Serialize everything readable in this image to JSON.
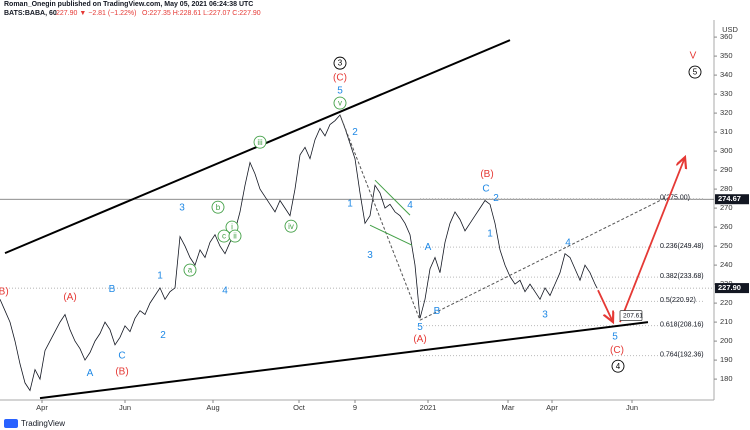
{
  "header": {
    "author_line": "Roman_Onegin published on TradingView.com, May 05, 2021 06:24:38 UTC",
    "symbol": "BATS:BABA, 60",
    "quote": "227.90 ▼ −2.81 (−1.22%)",
    "ohlc": "O:227.35 H:228.61 L:227.07 C:227.90"
  },
  "footer": {
    "brand": "TradingView"
  },
  "chart_data": {
    "type": "line",
    "currency": "USD",
    "color": "#131722",
    "x": [
      0,
      5,
      10,
      15,
      20,
      25,
      30,
      35,
      40,
      45,
      50,
      55,
      60,
      65,
      70,
      75,
      80,
      85,
      90,
      95,
      100,
      105,
      110,
      115,
      120,
      125,
      130,
      135,
      140,
      145,
      150,
      155,
      160,
      165,
      170,
      175,
      180,
      185,
      190,
      195,
      200,
      205,
      210,
      215,
      220,
      225,
      230,
      235,
      240,
      245,
      250,
      255,
      260,
      265,
      270,
      275,
      280,
      285,
      290,
      295,
      300,
      305,
      310,
      315,
      320,
      325,
      330,
      335,
      340,
      345,
      350,
      355,
      360,
      365,
      370,
      375,
      380,
      385,
      390,
      395,
      400,
      405,
      410,
      415,
      420,
      425,
      430,
      435,
      440,
      445,
      450,
      455,
      460,
      465,
      470,
      475,
      480,
      485,
      490,
      495,
      500,
      505,
      510,
      515,
      520,
      525,
      530,
      535,
      540,
      545,
      550,
      555,
      560,
      565,
      570,
      575,
      580,
      585,
      590,
      595,
      597
    ],
    "values": [
      222,
      216,
      210,
      200,
      188,
      178,
      174,
      185,
      180,
      195,
      200,
      205,
      210,
      214,
      206,
      200,
      196,
      190,
      194,
      200,
      204,
      210,
      206,
      198,
      202,
      208,
      205,
      212,
      216,
      214,
      220,
      224,
      228,
      222,
      226,
      228,
      255,
      250,
      244,
      240,
      248,
      244,
      252,
      256,
      250,
      246,
      252,
      258,
      268,
      282,
      294,
      288,
      280,
      276,
      272,
      268,
      274,
      270,
      266,
      280,
      298,
      302,
      296,
      306,
      312,
      308,
      314,
      316,
      319,
      312,
      304,
      296,
      278,
      262,
      266,
      282,
      278,
      270,
      272,
      268,
      266,
      262,
      256,
      240,
      212,
      222,
      238,
      244,
      236,
      252,
      262,
      268,
      264,
      258,
      262,
      266,
      270,
      274,
      272,
      262,
      248,
      240,
      234,
      230,
      232,
      226,
      230,
      226,
      222,
      228,
      224,
      230,
      236,
      246,
      244,
      238,
      232,
      240,
      236,
      230,
      227.9
    ],
    "xlim": [
      0,
      714
    ],
    "ylim": [
      169,
      369
    ],
    "yticks": [
      180,
      190,
      200,
      210,
      220,
      230,
      240,
      250,
      260,
      270,
      280,
      290,
      300,
      310,
      320,
      330,
      340,
      350,
      360
    ],
    "xticks": [
      {
        "value": 42,
        "label": "Apr"
      },
      {
        "value": 125,
        "label": "Jun"
      },
      {
        "value": 213,
        "label": "Aug"
      },
      {
        "value": 299,
        "label": "Oct"
      },
      {
        "value": 355,
        "label": "9"
      },
      {
        "value": 428,
        "label": "2021"
      },
      {
        "value": 508,
        "label": "Mar"
      },
      {
        "value": 552,
        "label": "Apr"
      },
      {
        "value": 632,
        "label": "Jun"
      }
    ],
    "price_labels": [
      {
        "value": 274.67,
        "label": "274.67"
      },
      {
        "value": 227.9,
        "label": "227.90"
      }
    ],
    "fib_levels": [
      {
        "value": 275,
        "label": "0(275.00)"
      },
      {
        "value": 249.48,
        "label": "0.236(249.48)"
      },
      {
        "value": 233.68,
        "label": "0.382(233.68)"
      },
      {
        "value": 220.92,
        "label": "0.5(220.92)"
      },
      {
        "value": 208.16,
        "label": "0.618(208.16)"
      },
      {
        "value": 192.36,
        "label": "0.764(192.36)"
      }
    ],
    "lines": [
      {
        "points": [
          [
            5,
            246.3
          ],
          [
            510,
            358.4
          ]
        ],
        "color": "#000000",
        "style": "solid"
      },
      {
        "points": [
          [
            40,
            170
          ],
          [
            648,
            210
          ]
        ],
        "color": "#000000",
        "style": "solid"
      },
      {
        "points": [
          [
            340,
            319
          ],
          [
            420,
            211
          ]
        ],
        "color": "#555555",
        "style": "dashed"
      },
      {
        "points": [
          [
            420,
            211
          ],
          [
            665,
            275.3
          ]
        ],
        "color": "#555555",
        "style": "dashed"
      },
      {
        "points": [
          [
            375,
            284.7
          ],
          [
            410,
            266.3
          ]
        ],
        "color": "#43a047",
        "style": "solid"
      },
      {
        "points": [
          [
            370,
            261
          ],
          [
            412,
            250.5
          ]
        ],
        "color": "#43a047",
        "style": "solid"
      }
    ],
    "arrows": [
      {
        "points": [
          [
            598,
            226.8
          ],
          [
            613,
            210
          ]
        ],
        "color": "#e53935"
      },
      {
        "points": [
          [
            620,
            210
          ],
          [
            685,
            296.8
          ]
        ],
        "color": "#e53935"
      }
    ],
    "callout": {
      "value": 207.61,
      "label": "207.61",
      "x": 620
    },
    "annotations": [
      {
        "text": "3",
        "x": 340,
        "y": 346.3,
        "color": "#000000",
        "circled": true
      },
      {
        "text": "(C)",
        "x": 340,
        "y": 338.9,
        "color": "#e53935"
      },
      {
        "text": "5",
        "x": 340,
        "y": 332.1,
        "color": "#1e88e5"
      },
      {
        "text": "v",
        "x": 340,
        "y": 325.3,
        "color": "#43a047",
        "circled": true
      },
      {
        "text": "2",
        "x": 355,
        "y": 310,
        "color": "#1e88e5"
      },
      {
        "text": "iii",
        "x": 260,
        "y": 304.7,
        "color": "#43a047",
        "circled": true
      },
      {
        "text": "3",
        "x": 182,
        "y": 270.5,
        "color": "#1e88e5"
      },
      {
        "text": "b",
        "x": 218,
        "y": 270.5,
        "color": "#43a047",
        "circled": true
      },
      {
        "text": "i",
        "x": 232,
        "y": 260,
        "color": "#43a047",
        "circled": true
      },
      {
        "text": "c",
        "x": 224,
        "y": 255.3,
        "color": "#43a047",
        "circled": true
      },
      {
        "text": "ii",
        "x": 235,
        "y": 255.3,
        "color": "#43a047",
        "circled": true
      },
      {
        "text": "a",
        "x": 190,
        "y": 237.4,
        "color": "#43a047",
        "circled": true
      },
      {
        "text": "iv",
        "x": 291,
        "y": 260.5,
        "color": "#43a047",
        "circled": true
      },
      {
        "text": "1",
        "x": 160,
        "y": 234.7,
        "color": "#1e88e5"
      },
      {
        "text": "4",
        "x": 225,
        "y": 226.8,
        "color": "#1e88e5"
      },
      {
        "text": "B",
        "x": 112,
        "y": 227.4,
        "color": "#1e88e5"
      },
      {
        "text": "(A)",
        "x": 70,
        "y": 223.2,
        "color": "#e53935"
      },
      {
        "text": "(B)",
        "x": 2,
        "y": 226.3,
        "color": "#e53935"
      },
      {
        "text": "2",
        "x": 163,
        "y": 203.2,
        "color": "#1e88e5"
      },
      {
        "text": "C",
        "x": 122,
        "y": 192.6,
        "color": "#1e88e5"
      },
      {
        "text": "(B)",
        "x": 122,
        "y": 184.2,
        "color": "#e53935"
      },
      {
        "text": "A",
        "x": 90,
        "y": 183.2,
        "color": "#1e88e5"
      },
      {
        "text": "1",
        "x": 350,
        "y": 272.6,
        "color": "#1e88e5"
      },
      {
        "text": "3",
        "x": 370,
        "y": 245.3,
        "color": "#1e88e5"
      },
      {
        "text": "4",
        "x": 410,
        "y": 271.6,
        "color": "#1e88e5"
      },
      {
        "text": "A",
        "x": 428,
        "y": 249.5,
        "color": "#1e88e5"
      },
      {
        "text": "B",
        "x": 437,
        "y": 215.8,
        "color": "#1e88e5"
      },
      {
        "text": "5",
        "x": 420,
        "y": 207.4,
        "color": "#1e88e5"
      },
      {
        "text": "(A)",
        "x": 420,
        "y": 201.1,
        "color": "#e53935"
      },
      {
        "text": "(B)",
        "x": 487,
        "y": 287.9,
        "color": "#e53935"
      },
      {
        "text": "C",
        "x": 486,
        "y": 280.5,
        "color": "#1e88e5"
      },
      {
        "text": "2",
        "x": 496,
        "y": 275.3,
        "color": "#1e88e5"
      },
      {
        "text": "1",
        "x": 490,
        "y": 256.8,
        "color": "#1e88e5"
      },
      {
        "text": "4",
        "x": 568,
        "y": 252.1,
        "color": "#1e88e5"
      },
      {
        "text": "3",
        "x": 545,
        "y": 214.2,
        "color": "#1e88e5"
      },
      {
        "text": "5",
        "x": 615,
        "y": 202.6,
        "color": "#1e88e5"
      },
      {
        "text": "(C)",
        "x": 617,
        "y": 195.3,
        "color": "#e53935"
      },
      {
        "text": "4",
        "x": 618,
        "y": 186.8,
        "color": "#000000",
        "circled": true
      },
      {
        "text": "V",
        "x": 693,
        "y": 350.5,
        "color": "#e53935"
      },
      {
        "text": "5",
        "x": 695,
        "y": 341.6,
        "color": "#000000",
        "circled": true
      }
    ]
  }
}
